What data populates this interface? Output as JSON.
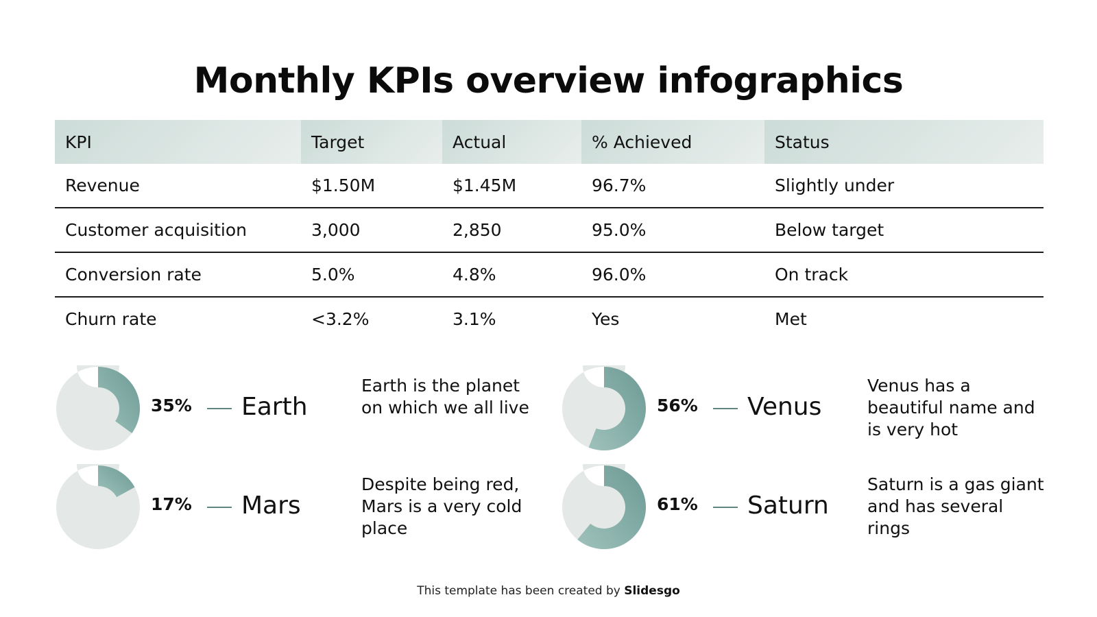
{
  "title": "Monthly KPIs overview infographics",
  "table": {
    "headers": [
      "KPI",
      "Target",
      "Actual",
      "% Achieved",
      "Status"
    ],
    "rows": [
      [
        "Revenue",
        "$1.50M",
        "$1.45M",
        "96.7%",
        "Slightly under"
      ],
      [
        "Customer acquisition",
        "3,000",
        "2,850",
        "95.0%",
        "Below target"
      ],
      [
        "Conversion rate",
        "5.0%",
        "4.8%",
        "96.0%",
        "On track"
      ],
      [
        "Churn rate",
        "<3.2%",
        "3.1%",
        "Yes",
        "Met"
      ]
    ]
  },
  "planets": [
    {
      "percent_label": "35%",
      "value": 35,
      "name": "Earth",
      "description": "Earth is the planet on which we all live"
    },
    {
      "percent_label": "56%",
      "value": 56,
      "name": "Venus",
      "description": "Venus has a beautiful name and is very hot"
    },
    {
      "percent_label": "17%",
      "value": 17,
      "name": "Mars",
      "description": "Despite being red, Mars is a very cold place"
    },
    {
      "percent_label": "61%",
      "value": 61,
      "name": "Saturn",
      "description": "Saturn is a gas giant and has several rings"
    }
  ],
  "colors": {
    "accent_dark": "#6c9994",
    "accent_light": "#9fc2bb",
    "track": "#e4e9e8",
    "header_bg": "#d4e2de"
  },
  "footer": {
    "prefix": "This template has been created by",
    "brand": "Slidesgo"
  }
}
